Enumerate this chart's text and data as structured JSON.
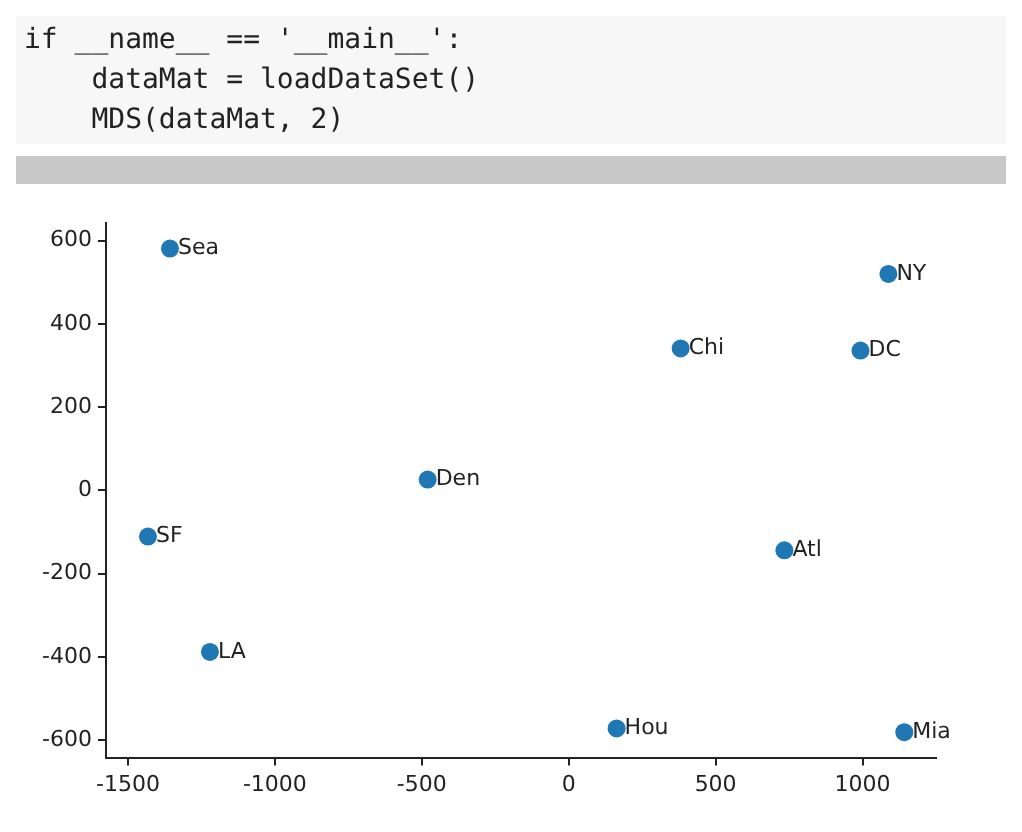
{
  "chart_data": {
    "type": "scatter",
    "annotations": [
      "if __name__ == '__main__':",
      "    dataMat = loadDataSet()",
      "    MDS(dataMat, 2)",
      {
        "text": "Sea",
        "x": -1357,
        "y": 581
      },
      {
        "text": "NY",
        "x": 1088,
        "y": 520
      },
      {
        "text": "Chi",
        "x": 381,
        "y": 341
      },
      {
        "text": "DC",
        "x": 993,
        "y": 336
      },
      {
        "text": "Den",
        "x": -480,
        "y": 26
      },
      {
        "text": "SF",
        "x": -1432,
        "y": -111
      },
      {
        "text": "Atl",
        "x": 734,
        "y": -144
      },
      {
        "text": "LA",
        "x": -1221,
        "y": -388
      },
      {
        "text": "Hou",
        "x": 163,
        "y": -572
      },
      {
        "text": "Mia",
        "x": 1142,
        "y": -581
      }
    ],
    "x": [
      -1357,
      1088,
      381,
      993,
      -480,
      -1432,
      734,
      -1221,
      163,
      1142
    ],
    "series": [
      {
        "color": "#1f77b4",
        "values": [
          581,
          520,
          341,
          336,
          26,
          -111,
          -144,
          -388,
          -572,
          -581
        ]
      }
    ],
    "xlim": [
      -1575,
      1250
    ],
    "xticks": [
      -1500,
      -1000,
      -500,
      0,
      500,
      1000
    ],
    "ylim": [
      -642,
      642
    ],
    "yticks": [
      -600,
      -400,
      -200,
      0,
      200,
      400,
      600
    ],
    "grid": false,
    "legend": false,
    "marker": "circle"
  }
}
